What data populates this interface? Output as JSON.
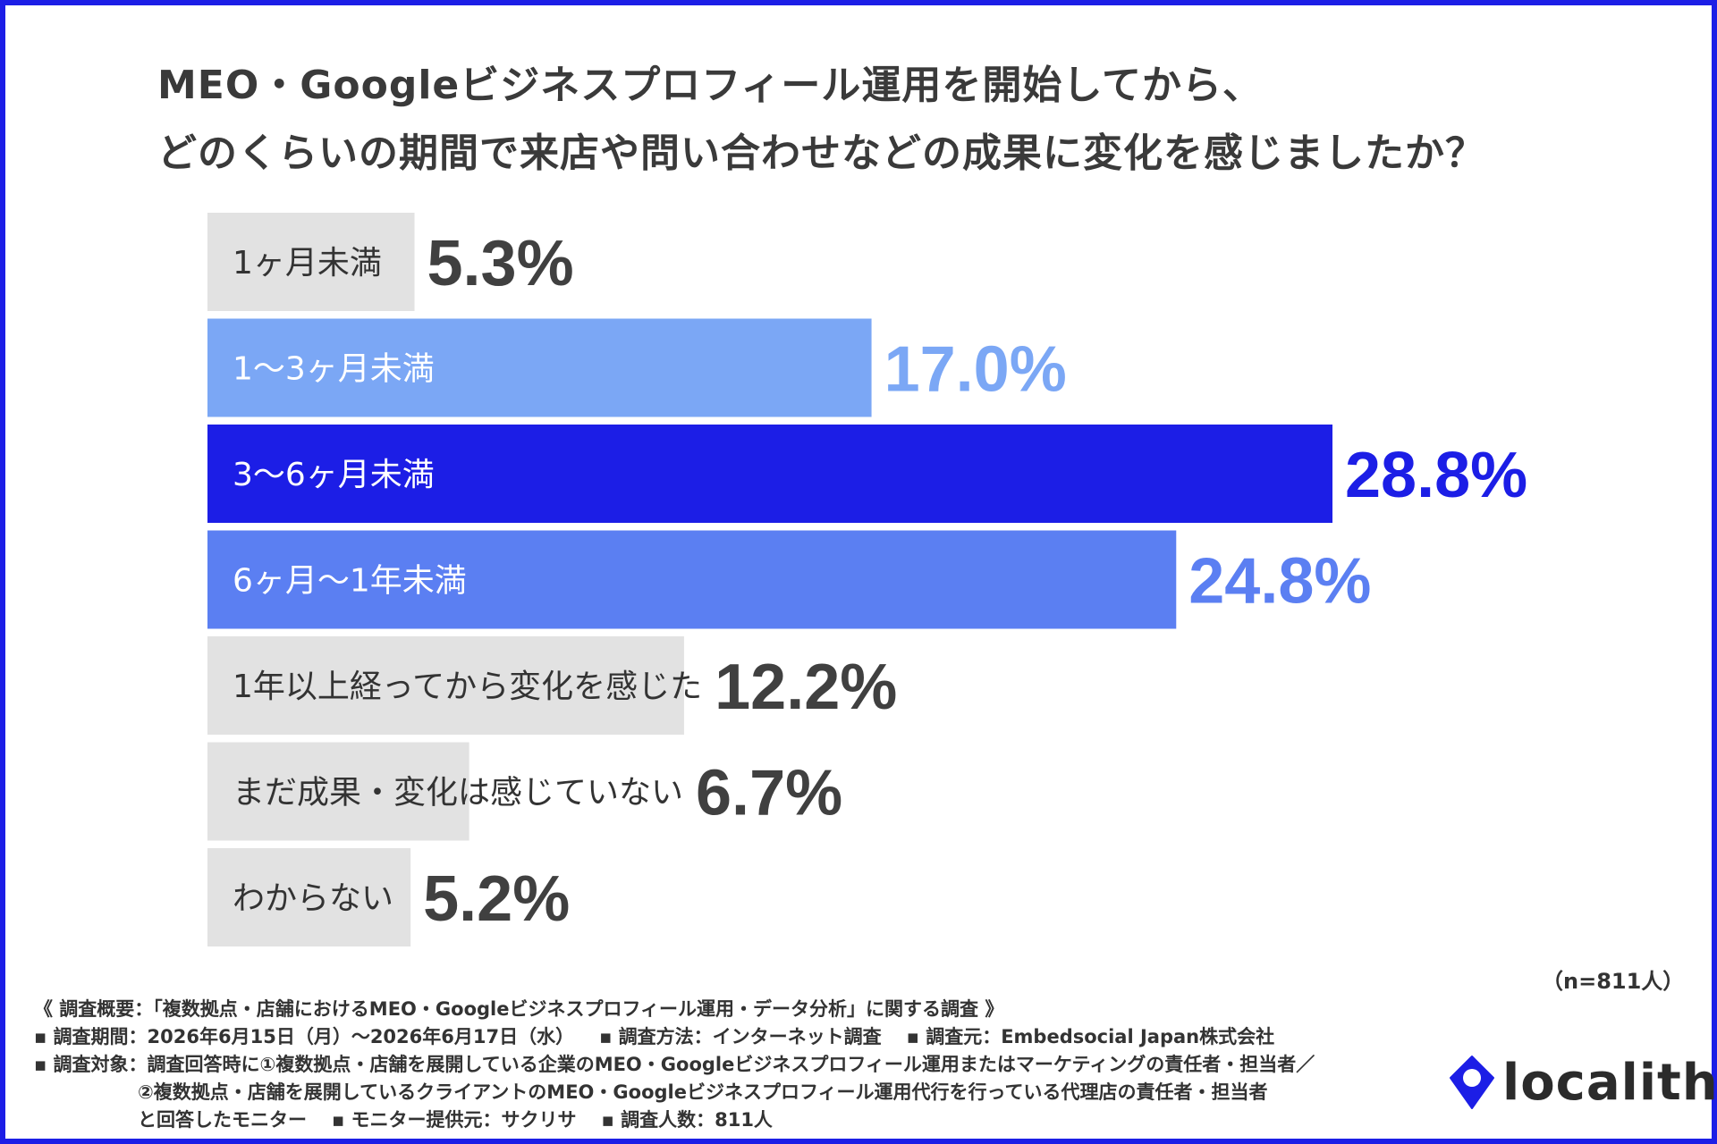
{
  "chart_data": {
    "type": "bar",
    "orientation": "horizontal",
    "title_lines": [
      "MEO・Googleビジネスプロフィール運用を開始してから、",
      "どのくらいの期間で来店や問い合わせなどの成果に変化を感じましたか？"
    ],
    "categories": [
      "1ヶ月未満",
      "1〜3ヶ月未満",
      "3〜6ヶ月未満",
      "6ヶ月〜1年未満",
      "1年以上経ってから変化を感じた",
      "まだ成果・変化は感じていない",
      "わからない"
    ],
    "values": [
      5.3,
      17.0,
      28.8,
      24.8,
      12.2,
      6.7,
      5.2
    ],
    "value_labels": [
      "5.3%",
      "17.0%",
      "28.8%",
      "24.8%",
      "12.2%",
      "6.7%",
      "5.2%"
    ],
    "bar_colors": [
      "#e2e2e2",
      "#7ba7f5",
      "#1c1ee6",
      "#5b7ff2",
      "#e2e2e2",
      "#e2e2e2",
      "#e2e2e2"
    ],
    "label_text_colors": [
      "#333333",
      "#ffffff",
      "#ffffff",
      "#ffffff",
      "#333333",
      "#333333",
      "#333333"
    ],
    "value_colors": [
      "#404040",
      "#7ba7f5",
      "#1c1ee6",
      "#5b7ff2",
      "#404040",
      "#404040",
      "#404040"
    ],
    "xlim": [
      0,
      28.8
    ],
    "grid": false,
    "legend": "none"
  },
  "sample_note": "（n=811人）",
  "footer": {
    "line1": "《 調査概要：「複数拠点・店舗におけるMEO・Googleビジネスプロフィール運用・データ分析」に関する調査 》",
    "period": "▪ 調査期間：2026年6月15日（月）〜2026年6月17日（水）",
    "method": "▪ 調査方法：インターネット調査",
    "source": "▪ 調査元：Embedsocial Japan株式会社",
    "target1": "▪ 調査対象：調査回答時に①複数拠点・店舗を展開している企業のMEO・Googleビジネスプロフィール運用またはマーケティングの責任者・担当者／",
    "target2": "②複数拠点・店舗を展開しているクライアントのMEO・Googleビジネスプロフィール運用代行を行っている代理店の責任者・担当者",
    "target3": "と回答したモニター",
    "provider": "▪ モニター提供元：サクリサ",
    "count": "▪ 調査人数：811人"
  },
  "logo": {
    "text": "localith",
    "color": "#1c1ee6"
  }
}
